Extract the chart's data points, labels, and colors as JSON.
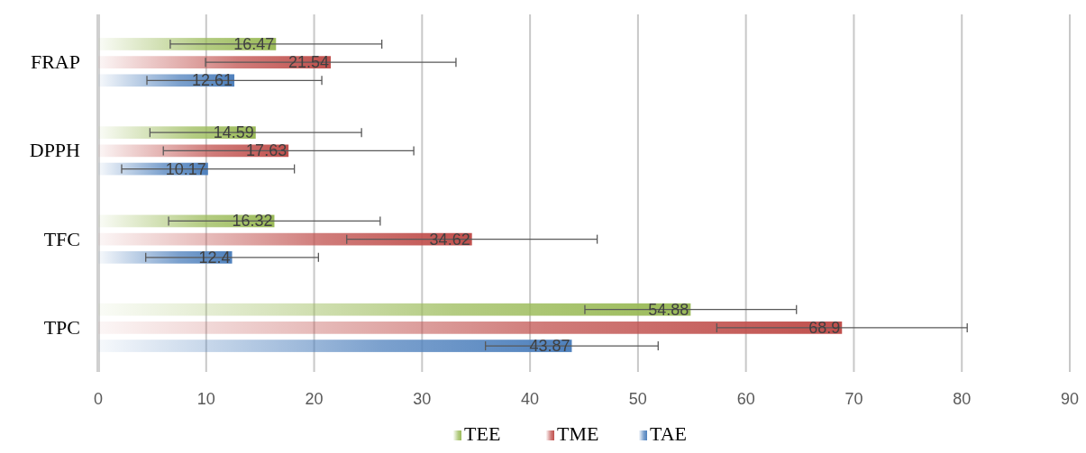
{
  "chart_data": {
    "type": "bar",
    "orientation": "horizontal",
    "categories": [
      "FRAP",
      "DPPH",
      "TFC",
      "TPC"
    ],
    "series": [
      {
        "name": "TEE",
        "color": "#9bbb59",
        "values": [
          16.47,
          14.59,
          16.32,
          54.88
        ],
        "errors": [
          9.8,
          9.8,
          9.8,
          9.8
        ]
      },
      {
        "name": "TME",
        "color": "#c0504d",
        "values": [
          21.54,
          17.63,
          34.62,
          68.9
        ],
        "errors": [
          11.6,
          11.6,
          11.6,
          11.6
        ]
      },
      {
        "name": "TAE",
        "color": "#4f81bd",
        "values": [
          12.61,
          10.17,
          12.4,
          43.87
        ],
        "errors": [
          8.1,
          8.0,
          8.0,
          8.0
        ]
      }
    ],
    "xlim": [
      0,
      90
    ],
    "xticks": [
      0,
      10,
      20,
      30,
      40,
      50,
      60,
      70,
      80,
      90
    ],
    "grid": "x",
    "legend": "bottom",
    "data_labels": true
  }
}
